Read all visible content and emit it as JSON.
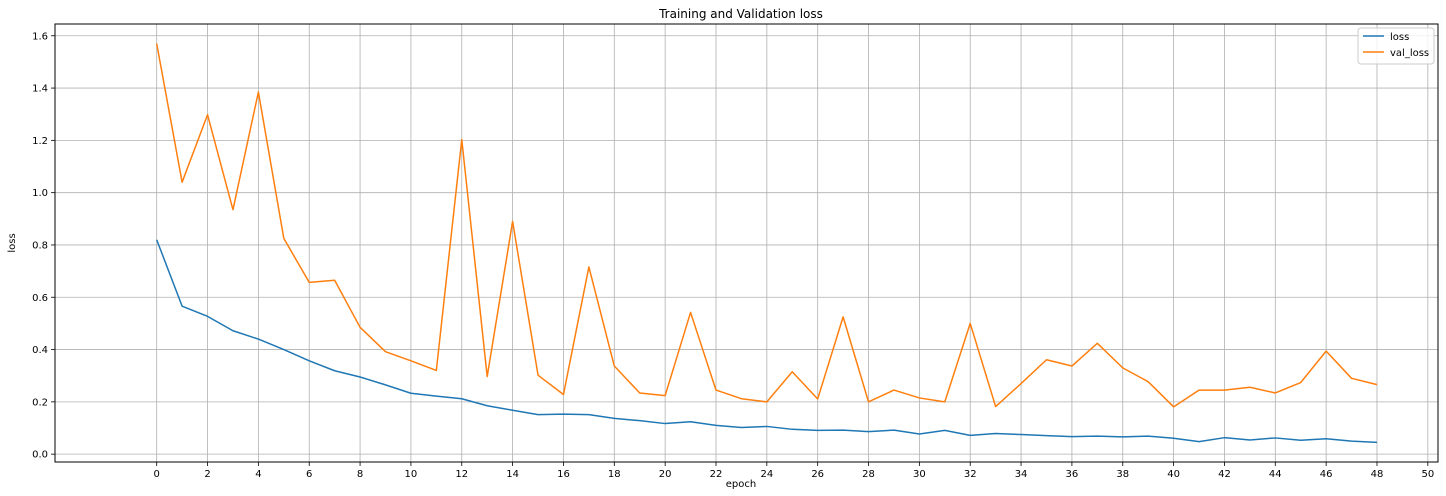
{
  "chart_data": {
    "type": "line",
    "title": "Training and Validation loss",
    "xlabel": "epoch",
    "ylabel": "loss",
    "xlim": [
      -4,
      50.4
    ],
    "ylim": [
      -0.03,
      1.645
    ],
    "xticks": [
      0,
      2,
      4,
      6,
      8,
      10,
      12,
      14,
      16,
      18,
      20,
      22,
      24,
      26,
      28,
      30,
      32,
      34,
      36,
      38,
      40,
      42,
      44,
      46,
      48,
      50
    ],
    "yticks": [
      0.0,
      0.2,
      0.4,
      0.6,
      0.8,
      1.0,
      1.2,
      1.4,
      1.6
    ],
    "grid": true,
    "legend_position": "upper right",
    "x": [
      0,
      1,
      2,
      3,
      4,
      5,
      6,
      7,
      8,
      9,
      10,
      11,
      12,
      13,
      14,
      15,
      16,
      17,
      18,
      19,
      20,
      21,
      22,
      23,
      24,
      25,
      26,
      27,
      28,
      29,
      30,
      31,
      32,
      33,
      34,
      35,
      36,
      37,
      38,
      39,
      40,
      41,
      42,
      43,
      44,
      45,
      46,
      47,
      48
    ],
    "series": [
      {
        "name": "loss",
        "color": "#1f77b4",
        "values": [
          0.82,
          0.566,
          0.527,
          0.472,
          0.44,
          0.4,
          0.357,
          0.319,
          0.295,
          0.265,
          0.233,
          0.222,
          0.212,
          0.185,
          0.168,
          0.151,
          0.153,
          0.151,
          0.137,
          0.128,
          0.117,
          0.124,
          0.11,
          0.102,
          0.106,
          0.095,
          0.091,
          0.092,
          0.086,
          0.092,
          0.077,
          0.091,
          0.072,
          0.079,
          0.075,
          0.071,
          0.067,
          0.069,
          0.066,
          0.069,
          0.061,
          0.048,
          0.063,
          0.054,
          0.062,
          0.053,
          0.059,
          0.05,
          0.045
        ]
      },
      {
        "name": "val_loss",
        "color": "#ff7f0e",
        "values": [
          1.57,
          1.04,
          1.298,
          0.935,
          1.385,
          0.825,
          0.657,
          0.665,
          0.485,
          0.392,
          0.357,
          0.32,
          1.203,
          0.297,
          0.89,
          0.302,
          0.228,
          0.716,
          0.337,
          0.234,
          0.224,
          0.542,
          0.245,
          0.212,
          0.2,
          0.315,
          0.211,
          0.525,
          0.2,
          0.245,
          0.215,
          0.2,
          0.5,
          0.182,
          0.27,
          0.361,
          0.337,
          0.424,
          0.33,
          0.277,
          0.181,
          0.245,
          0.245,
          0.256,
          0.234,
          0.274,
          0.394,
          0.29,
          0.266
        ]
      }
    ]
  }
}
